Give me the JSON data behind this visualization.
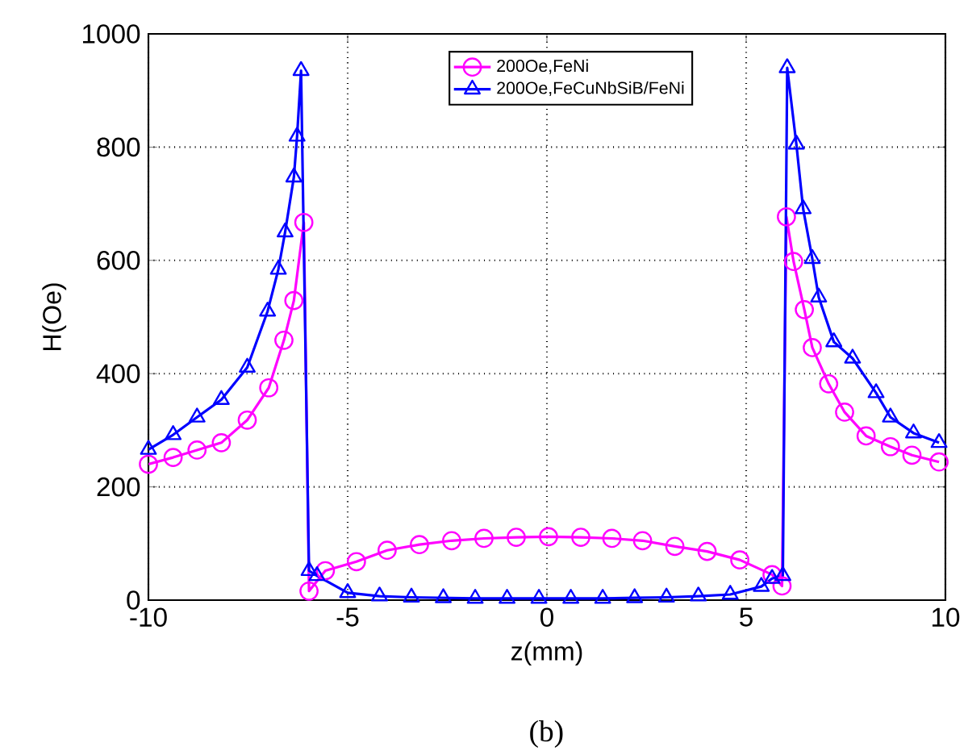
{
  "chart_data": {
    "type": "line",
    "xlabel": "z(mm)",
    "ylabel": "H(Oe)",
    "annotations": [
      "(b)"
    ],
    "xlim": [
      -10,
      10
    ],
    "ylim": [
      0,
      1000
    ],
    "xticks": [
      -10,
      -5,
      0,
      5,
      10
    ],
    "yticks": [
      0,
      200,
      400,
      600,
      800,
      1000
    ],
    "grid": true,
    "legend": "top",
    "series": [
      {
        "name": "200Oe,FeNi",
        "color": "#ff00ff",
        "marker": "circle",
        "x": [
          -10,
          -9.38,
          -8.78,
          -8.17,
          -7.52,
          -6.98,
          -6.6,
          -6.35,
          -6.1,
          -5.97,
          -5.56,
          -4.78,
          -4.01,
          -3.2,
          -2.39,
          -1.58,
          -0.77,
          0.04,
          0.85,
          1.63,
          2.4,
          3.21,
          4.02,
          4.84,
          5.65,
          5.9,
          6.01,
          6.19,
          6.46,
          6.66,
          7.07,
          7.47,
          8.01,
          8.62,
          9.16,
          9.84
        ],
        "values": [
          240,
          252,
          265,
          278,
          318,
          375,
          459,
          529,
          667,
          16,
          52,
          68,
          88,
          98,
          105,
          109,
          111,
          112,
          111,
          109,
          105,
          95,
          86,
          71,
          45,
          25,
          677,
          598,
          513,
          446,
          382,
          332,
          290,
          271,
          256,
          244
        ]
      },
      {
        "name": "200Oe,FeCuNbSiB/FeNi",
        "color": "#0000ff",
        "marker": "triangle",
        "x": [
          -10,
          -9.38,
          -8.78,
          -8.17,
          -7.52,
          -7.01,
          -6.74,
          -6.57,
          -6.35,
          -6.27,
          -6.17,
          -5.97,
          -5.77,
          -5.0,
          -4.2,
          -3.4,
          -2.6,
          -1.8,
          -1.0,
          -0.2,
          0.6,
          1.4,
          2.2,
          3.0,
          3.8,
          4.6,
          5.38,
          5.65,
          5.92,
          6.03,
          6.26,
          6.43,
          6.66,
          6.82,
          7.2,
          7.67,
          8.26,
          8.62,
          9.2,
          9.84
        ],
        "values": [
          266,
          292,
          323,
          354,
          411,
          510,
          584,
          650,
          747,
          819,
          935,
          52,
          43,
          13,
          7,
          5,
          4,
          3,
          3,
          3,
          3,
          3,
          4,
          5,
          7,
          10,
          24,
          38,
          43,
          940,
          805,
          691,
          603,
          535,
          456,
          427,
          366,
          323,
          295,
          278
        ]
      }
    ]
  }
}
